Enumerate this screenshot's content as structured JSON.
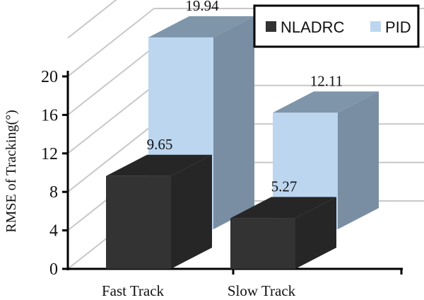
{
  "chart_data": {
    "type": "bar",
    "categories": [
      "Fast Track",
      "Slow Track"
    ],
    "series": [
      {
        "name": "NLADRC",
        "values": [
          9.65,
          5.27
        ],
        "color": "#333333"
      },
      {
        "name": "PID",
        "values": [
          19.94,
          12.11
        ],
        "color": "#bcd6f0"
      }
    ],
    "data_labels": [
      [
        "9.65",
        "5.27"
      ],
      [
        "19.94",
        "12.11"
      ]
    ],
    "ylabel": "RMSE of  Tracking(°)",
    "ylim": [
      0,
      20
    ],
    "yticks": [
      "0",
      "4",
      "8",
      "12",
      "16",
      "20"
    ],
    "grid": true,
    "legend": "top-right",
    "style": "3d"
  }
}
